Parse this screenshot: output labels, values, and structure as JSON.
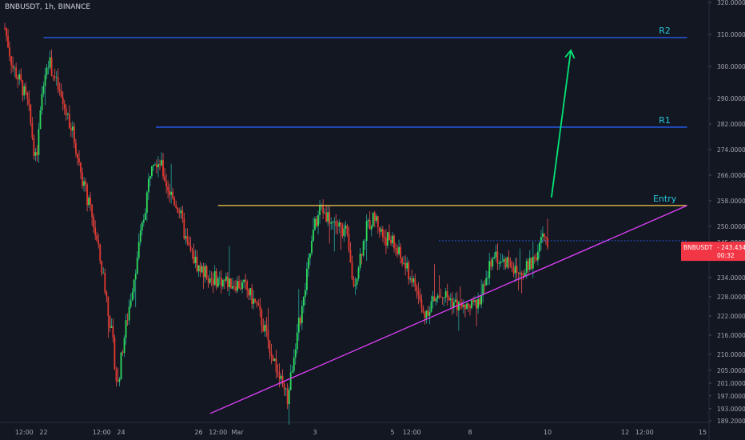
{
  "header": {
    "title": "BNBUSDT, 1h, BINANCE"
  },
  "price_tag": {
    "symbol": "BNBUSDT",
    "price": "243.4349",
    "countdown": "00:32"
  },
  "chart_data": {
    "type": "candlestick",
    "title": "BNBUSDT, 1h, BINANCE",
    "y_ticks": [
      "189.2000",
      "193.0000",
      "197.0000",
      "201.0000",
      "205.0000",
      "210.0000",
      "216.0000",
      "222.0000",
      "228.0000",
      "234.0000",
      "240.0000",
      "245.0000",
      "250.0000",
      "258.0000",
      "266.0000",
      "274.0000",
      "282.0000",
      "290.0000",
      "300.0000",
      "310.0000",
      "320.0000"
    ],
    "x_ticks": [
      "12:00",
      "22",
      "12:00",
      "24",
      "26",
      "12:00",
      "Mar",
      "3",
      "5",
      "12:00",
      "8",
      "10",
      "12",
      "12:00",
      "15"
    ],
    "x_tick_day_offsets": [
      0.5,
      1,
      2.5,
      3,
      5,
      5.5,
      6,
      8,
      10,
      10.5,
      12,
      14,
      16,
      16.5,
      18
    ],
    "ylim": [
      189.2,
      320
    ],
    "current_price": 243.4349,
    "levels": [
      {
        "label": "R2",
        "price": 309,
        "start": 1.0,
        "end": 17.6,
        "color": "#2962ff"
      },
      {
        "label": "R1",
        "price": 281,
        "start": 3.9,
        "end": 17.6,
        "color": "#2962ff"
      },
      {
        "label": "Entry",
        "price": 256.5,
        "start": 5.5,
        "end": 17.6,
        "color": "#f7c948"
      }
    ],
    "trendline": {
      "from": [
        5.3,
        191.5
      ],
      "to": [
        17.6,
        256.5
      ],
      "color": "#e040fb"
    },
    "arrow": {
      "from": [
        14.1,
        259
      ],
      "to": [
        14.6,
        305
      ],
      "color": "#00e676"
    },
    "price_line": {
      "start": 11.2,
      "end": 17.6,
      "price": 245.5
    },
    "anchors": [
      [
        0.0,
        312
      ],
      [
        0.2,
        300
      ],
      [
        0.4,
        295
      ],
      [
        0.6,
        288
      ],
      [
        0.8,
        270
      ],
      [
        1.0,
        295
      ],
      [
        1.1,
        303
      ],
      [
        1.3,
        296
      ],
      [
        1.5,
        288
      ],
      [
        1.7,
        282
      ],
      [
        2.0,
        265
      ],
      [
        2.3,
        250
      ],
      [
        2.6,
        230
      ],
      [
        2.8,
        212
      ],
      [
        2.9,
        199
      ],
      [
        3.05,
        213
      ],
      [
        3.3,
        232
      ],
      [
        3.6,
        254
      ],
      [
        3.8,
        272
      ],
      [
        4.0,
        270
      ],
      [
        4.2,
        262
      ],
      [
        4.5,
        255
      ],
      [
        4.7,
        244
      ],
      [
        5.0,
        237
      ],
      [
        5.3,
        234
      ],
      [
        5.6,
        233
      ],
      [
        6.0,
        232
      ],
      [
        6.2,
        231
      ],
      [
        6.5,
        225
      ],
      [
        6.8,
        214
      ],
      [
        7.0,
        206
      ],
      [
        7.2,
        198
      ],
      [
        7.3,
        196
      ],
      [
        7.5,
        214
      ],
      [
        7.7,
        226
      ],
      [
        7.85,
        240
      ],
      [
        8.0,
        250
      ],
      [
        8.15,
        256
      ],
      [
        8.4,
        252
      ],
      [
        8.6,
        250
      ],
      [
        8.8,
        248
      ],
      [
        9.0,
        231
      ],
      [
        9.15,
        240
      ],
      [
        9.35,
        250
      ],
      [
        9.55,
        253
      ],
      [
        9.75,
        247
      ],
      [
        10.0,
        245
      ],
      [
        10.3,
        238
      ],
      [
        10.6,
        231
      ],
      [
        10.8,
        222
      ],
      [
        11.0,
        226
      ],
      [
        11.3,
        229
      ],
      [
        11.6,
        226
      ],
      [
        11.8,
        224
      ],
      [
        12.1,
        225
      ],
      [
        12.4,
        231
      ],
      [
        12.6,
        243
      ],
      [
        12.8,
        238
      ],
      [
        13.0,
        240
      ],
      [
        13.2,
        235
      ],
      [
        13.5,
        237
      ],
      [
        13.7,
        241
      ],
      [
        13.85,
        247
      ],
      [
        14.0,
        243.4
      ]
    ]
  }
}
